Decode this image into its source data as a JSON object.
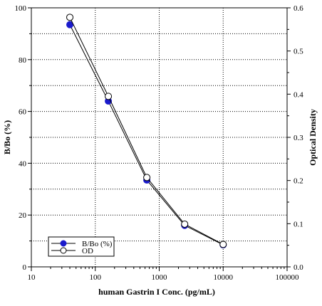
{
  "chart_data": {
    "type": "line",
    "title": "",
    "x": [
      40,
      160,
      640,
      2500,
      10000
    ],
    "xlabel": "human Gastrin I Conc. (pg/mL)",
    "xscale": "log",
    "xlim": [
      10,
      100000
    ],
    "xtick_labels": [
      "10",
      "100",
      "1000",
      "10000",
      "100000"
    ],
    "ylabel": "B/Bo (%)",
    "ylim": [
      0,
      100
    ],
    "ytick_labels": [
      "0",
      "20",
      "40",
      "60",
      "80",
      "100"
    ],
    "y2label": "Optical Density",
    "y2lim": [
      0,
      0.6
    ],
    "y2tick_labels": [
      "0.0",
      "0.1",
      "0.2",
      "0.3",
      "0.4",
      "0.5",
      "0.6"
    ],
    "grid": true,
    "grid_style": "dotted",
    "legend_position": "bottom-left",
    "series": [
      {
        "name": "B/Bo (%)",
        "axis": "left",
        "marker": "filled-circle",
        "color": "#1a1acc",
        "values": [
          93.5,
          64,
          33.5,
          16,
          8.5
        ]
      },
      {
        "name": "OD",
        "axis": "right",
        "marker": "open-circle",
        "color": "#000000",
        "values": [
          0.578,
          0.395,
          0.207,
          0.099,
          0.052
        ]
      }
    ]
  }
}
